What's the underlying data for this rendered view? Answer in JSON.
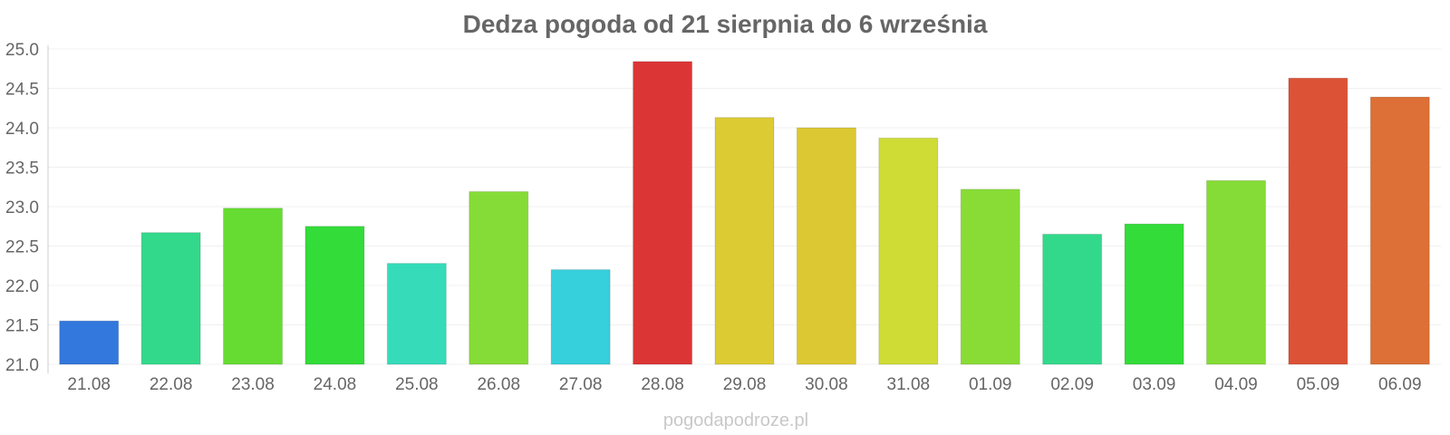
{
  "chart_data": {
    "type": "bar",
    "title": "Dedza pogoda od 21 sierpnia do 6 września",
    "xlabel": "",
    "ylabel": "",
    "categories": [
      "21.08",
      "22.08",
      "23.08",
      "24.08",
      "25.08",
      "26.08",
      "27.08",
      "28.08",
      "29.08",
      "30.08",
      "31.08",
      "01.09",
      "02.09",
      "03.09",
      "04.09",
      "05.09",
      "06.09"
    ],
    "values": [
      21.55,
      22.67,
      22.98,
      22.75,
      22.28,
      23.19,
      22.2,
      24.84,
      24.13,
      24.0,
      23.87,
      23.22,
      22.65,
      22.78,
      23.33,
      24.63,
      24.39
    ],
    "colors": [
      "#3378dc",
      "#33d98b",
      "#66dc33",
      "#33dc39",
      "#36dcba",
      "#86dc36",
      "#36cfdc",
      "#dc3536",
      "#dccb33",
      "#dcc833",
      "#cfdc36",
      "#89dc36",
      "#33d98b",
      "#33dc39",
      "#86dc36",
      "#dc5236",
      "#dc7036"
    ],
    "ylim": [
      21.0,
      25.0
    ],
    "y_ticks": [
      "21.0",
      "21.5",
      "22.0",
      "22.5",
      "23.0",
      "23.5",
      "24.0",
      "24.5",
      "25.0"
    ],
    "grid": true,
    "legend": "none"
  },
  "watermark": "pogodapodroze.pl"
}
